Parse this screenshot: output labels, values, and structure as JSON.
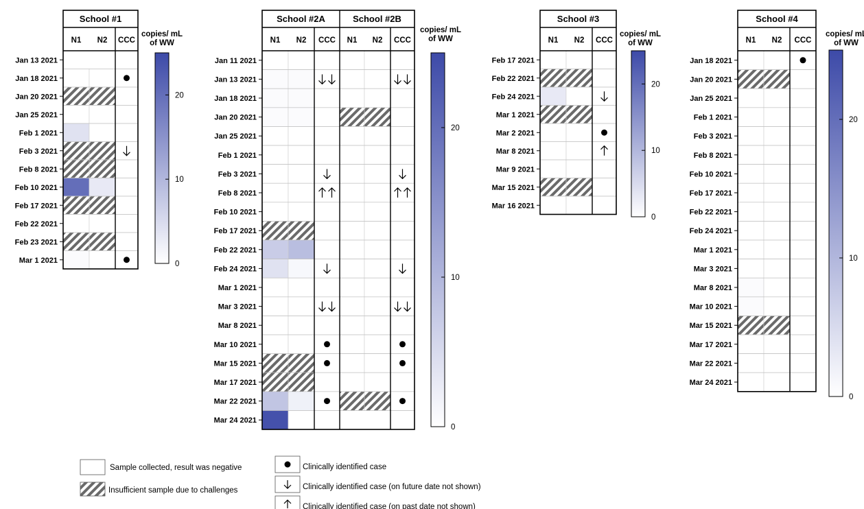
{
  "chart_data": [
    {
      "type": "heatmap",
      "title": "School #1",
      "columns": [
        "N1",
        "N2",
        "CCC"
      ],
      "dates": [
        "Jan 13 2021",
        "Jan 18 2021",
        "Jan 20 2021",
        "Jan 25 2021",
        "Feb 1 2021",
        "Feb 3 2021",
        "Feb 8 2021",
        "Feb 10 2021",
        "Feb 17 2021",
        "Feb 22 2021",
        "Feb 23 2021",
        "Mar 1 2021"
      ],
      "n1": [
        null,
        0,
        "insufficient",
        0,
        4,
        "insufficient",
        "insufficient",
        20,
        "insufficient",
        0,
        "insufficient",
        0.5
      ],
      "n2": [
        null,
        0,
        "insufficient",
        0,
        0,
        "insufficient",
        "insufficient",
        3,
        "insufficient",
        0,
        "insufficient",
        0
      ],
      "ccc": [
        "",
        "dot",
        "",
        "",
        "",
        "down",
        "",
        "",
        "",
        "",
        "",
        "dot"
      ],
      "colorbar": {
        "label": "copies/ mL of WW",
        "min": 0,
        "max": 25,
        "ticks": [
          0,
          10,
          20
        ]
      }
    },
    {
      "type": "heatmap",
      "groups": [
        "School #2A",
        "School #2B"
      ],
      "columns": [
        "N1",
        "N2",
        "CCC",
        "N1",
        "N2",
        "CCC"
      ],
      "dates": [
        "Jan 11 2021",
        "Jan 13 2021",
        "Jan 18 2021",
        "Jan 20 2021",
        "Jan 25 2021",
        "Feb 1 2021",
        "Feb 3 2021",
        "Feb 8 2021",
        "Feb 10 2021",
        "Feb 17 2021",
        "Feb 22 2021",
        "Feb 24 2021",
        "Mar 1 2021",
        "Mar 3 2021",
        "Mar 8 2021",
        "Mar 10 2021",
        "Mar 15 2021",
        "Mar 17 2021",
        "Mar 22 2021",
        "Mar 24 2021"
      ],
      "n1_2a": [
        0,
        0.5,
        0.5,
        0.5,
        0,
        0,
        0,
        0,
        0,
        "insufficient",
        7,
        4,
        0,
        0,
        0,
        0,
        "insufficient",
        "insufficient",
        8,
        24
      ],
      "n2_2a": [
        0,
        0.5,
        0.5,
        0.5,
        0,
        0,
        0,
        0,
        0,
        "insufficient",
        9,
        1,
        0,
        0,
        0,
        0,
        "insufficient",
        "insufficient",
        2,
        0
      ],
      "ccc_2a": [
        "",
        "down2",
        "",
        "",
        "",
        "",
        "down",
        "up2",
        "",
        "",
        "",
        "down",
        "",
        "down2",
        "",
        "dot",
        "dot",
        "",
        "dot",
        ""
      ],
      "n1_2b": [
        0,
        0,
        0,
        "insufficient",
        0,
        0,
        0,
        0,
        0,
        0,
        0,
        0,
        0,
        0,
        0,
        0,
        0,
        0,
        "insufficient",
        null
      ],
      "n2_2b": [
        0,
        0,
        0,
        "insufficient",
        0,
        0,
        0,
        0,
        0,
        0,
        0,
        0,
        0,
        0,
        0,
        0,
        0,
        0,
        "insufficient",
        null
      ],
      "ccc_2b": [
        "",
        "down2",
        "",
        "",
        "",
        "",
        "down",
        "up2",
        "",
        "",
        "",
        "down",
        "",
        "down2",
        "",
        "dot",
        "dot",
        "",
        "dot",
        ""
      ],
      "colorbar": {
        "label": "copies/ mL of WW",
        "min": 0,
        "max": 25,
        "ticks": [
          0,
          10,
          20
        ]
      }
    },
    {
      "type": "heatmap",
      "title": "School #3",
      "columns": [
        "N1",
        "N2",
        "CCC"
      ],
      "dates": [
        "Feb 17 2021",
        "Feb 22 2021",
        "Feb 24 2021",
        "Mar 1 2021",
        "Mar 2 2021",
        "Mar 8 2021",
        "Mar 9 2021",
        "Mar 15 2021",
        "Mar 16 2021"
      ],
      "n1": [
        0,
        "insufficient",
        3,
        "insufficient",
        0,
        0,
        0,
        "insufficient",
        0
      ],
      "n2": [
        0,
        "insufficient",
        0,
        "insufficient",
        0,
        0,
        0,
        "insufficient",
        0
      ],
      "ccc": [
        "",
        "",
        "down",
        "",
        "dot",
        "up",
        "",
        "",
        ""
      ],
      "colorbar": {
        "label": "copies/ mL of WW",
        "min": 0,
        "max": 25,
        "ticks": [
          0,
          10,
          20
        ]
      }
    },
    {
      "type": "heatmap",
      "title": "School #4",
      "columns": [
        "N1",
        "N2",
        "CCC"
      ],
      "dates": [
        "Jan 18 2021",
        "Jan 20 2021",
        "Jan 25 2021",
        "Feb 1 2021",
        "Feb 3 2021",
        "Feb 8 2021",
        "Feb 10 2021",
        "Feb 17 2021",
        "Feb 22 2021",
        "Feb 24 2021",
        "Mar 1 2021",
        "Mar 3 2021",
        "Mar 8 2021",
        "Mar 10 2021",
        "Mar 15 2021",
        "Mar 17 2021",
        "Mar 22 2021",
        "Mar 24 2021"
      ],
      "n1": [
        0,
        "insufficient",
        0,
        0,
        0,
        0,
        0,
        0,
        0,
        0,
        0,
        0,
        0.5,
        0.5,
        "insufficient",
        0,
        0,
        0
      ],
      "n2": [
        0,
        "insufficient",
        0,
        0,
        0,
        0,
        0,
        0,
        0,
        0,
        0,
        0,
        0,
        0,
        "insufficient",
        0,
        0,
        0
      ],
      "ccc": [
        "dot",
        "",
        "",
        "",
        "",
        "",
        "",
        "",
        "",
        "",
        "",
        "",
        "",
        "",
        "",
        "",
        "",
        ""
      ],
      "colorbar": {
        "label": "copies/ mL of WW",
        "min": 0,
        "max": 25,
        "ticks": [
          0,
          10,
          20
        ]
      }
    }
  ],
  "legend": {
    "negative": "Sample collected, result was negative",
    "insufficient": "Insufficient sample due to challenges",
    "case": "Clinically identified case",
    "case_future": "Clinically identified case (on future date not shown)",
    "case_past": "Clinically identified case (on past date not shown)"
  },
  "colors": {
    "low": "#ffffff",
    "high": "#3d4aa8",
    "hatch": "#6a6a6a",
    "border": "#000000",
    "grid": "#cfcfcf"
  }
}
